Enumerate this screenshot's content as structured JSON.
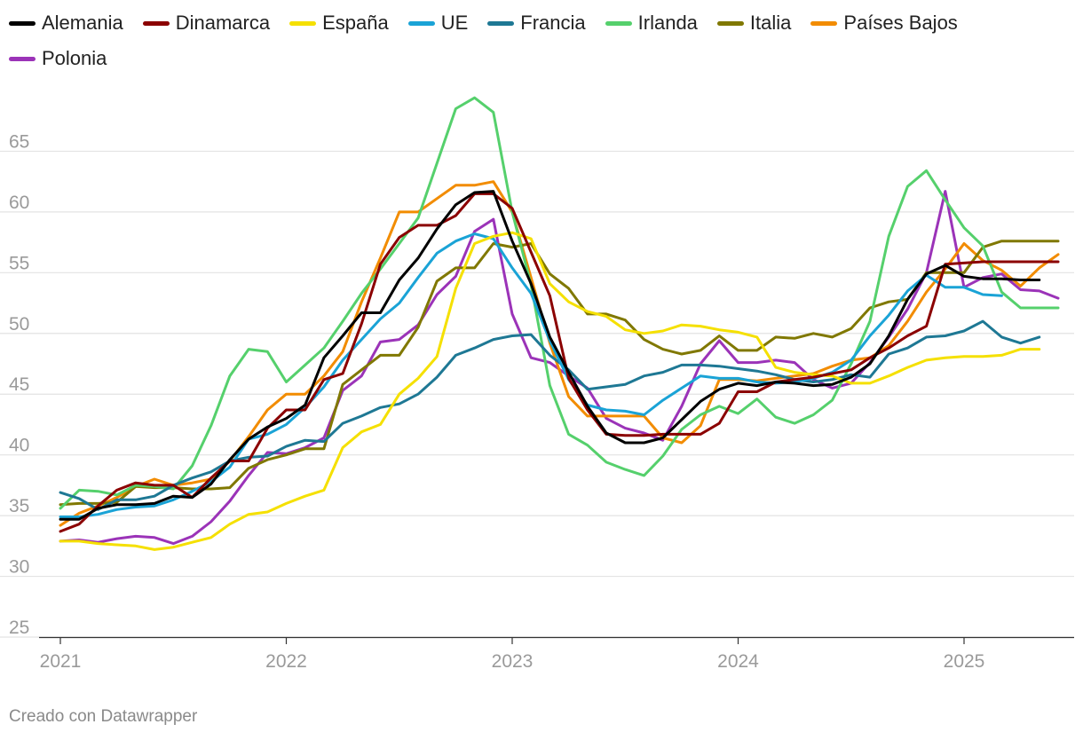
{
  "credit": "Creado con Datawrapper",
  "chart_data": {
    "type": "line",
    "title": "",
    "xlabel": "",
    "ylabel": "",
    "ylim": [
      25,
      70
    ],
    "xlim": [
      2021.0,
      2025.5
    ],
    "y_ticks": [
      25,
      30,
      35,
      40,
      45,
      50,
      55,
      60,
      65
    ],
    "x_ticks": [
      "2021",
      "2022",
      "2023",
      "2024",
      "2025"
    ],
    "x_tick_values": [
      2021,
      2022,
      2023,
      2024,
      2025
    ],
    "grid": "horizontal",
    "legend_position": "top",
    "series": [
      {
        "name": "Alemania",
        "color": "#000000",
        "values": [
          34.7,
          34.7,
          35.6,
          35.9,
          35.9,
          36.0,
          36.6,
          36.5,
          37.6,
          39.6,
          41.3,
          42.3,
          43.0,
          44.1,
          48.0,
          49.8,
          51.7,
          51.7,
          54.4,
          56.2,
          58.6,
          60.6,
          61.6,
          61.7,
          57.6,
          54.1,
          49.7,
          46.8,
          44.0,
          41.8,
          41.0,
          41.0,
          41.4,
          42.9,
          44.4,
          45.4,
          45.9,
          45.7,
          46.0,
          45.9,
          45.7,
          45.8,
          46.4,
          47.5,
          49.8,
          52.8,
          54.9,
          55.6,
          54.7,
          54.5,
          54.5,
          54.4,
          54.4
        ]
      },
      {
        "name": "Dinamarca",
        "color": "#8b0000",
        "values": [
          33.7,
          34.3,
          35.8,
          37.1,
          37.7,
          37.5,
          37.5,
          36.5,
          38.1,
          39.5,
          39.5,
          42.2,
          43.7,
          43.7,
          46.2,
          46.7,
          50.8,
          55.7,
          57.9,
          58.9,
          58.9,
          59.7,
          61.5,
          61.5,
          60.3,
          56.7,
          53.1,
          46.3,
          43.7,
          41.7,
          41.6,
          41.6,
          41.7,
          41.7,
          41.7,
          42.6,
          45.2,
          45.2,
          46.0,
          46.2,
          46.4,
          46.7,
          47.0,
          48.0,
          48.8,
          49.8,
          50.6,
          55.7,
          55.8,
          55.9,
          55.9,
          55.9,
          55.9,
          55.9
        ]
      },
      {
        "name": "España",
        "color": "#f5e000",
        "values": [
          32.9,
          32.9,
          32.7,
          32.6,
          32.5,
          32.2,
          32.4,
          32.8,
          33.2,
          34.3,
          35.1,
          35.3,
          36.0,
          36.6,
          37.1,
          40.6,
          41.9,
          42.5,
          45.0,
          46.3,
          48.1,
          53.7,
          57.4,
          58.0,
          58.3,
          57.8,
          54.1,
          52.6,
          51.8,
          51.4,
          50.3,
          50.0,
          50.2,
          50.7,
          50.6,
          50.3,
          50.1,
          49.7,
          47.2,
          46.8,
          46.6,
          46.5,
          45.9,
          45.9,
          46.5,
          47.2,
          47.8,
          48.0,
          48.1,
          48.1,
          48.2,
          48.7,
          48.7
        ]
      },
      {
        "name": "UE",
        "color": "#1aa3d6",
        "values": [
          34.9,
          34.9,
          35.1,
          35.5,
          35.7,
          35.8,
          36.3,
          37.0,
          37.8,
          39.0,
          41.3,
          41.7,
          42.5,
          43.9,
          45.6,
          47.8,
          49.5,
          51.2,
          52.5,
          54.6,
          56.6,
          57.6,
          58.2,
          57.8,
          55.4,
          53.3,
          49.4,
          46.2,
          44.1,
          43.7,
          43.6,
          43.3,
          44.5,
          45.5,
          46.5,
          46.3,
          46.3,
          46.0,
          45.9,
          46.0,
          46.3,
          46.8,
          47.8,
          49.8,
          51.5,
          53.5,
          54.8,
          53.8,
          53.8,
          53.2,
          53.1
        ]
      },
      {
        "name": "Francia",
        "color": "#1e7894",
        "values": [
          36.9,
          36.4,
          35.5,
          36.3,
          36.3,
          36.6,
          37.5,
          38.1,
          38.6,
          39.5,
          39.8,
          39.9,
          40.7,
          41.2,
          41.1,
          42.6,
          43.2,
          43.9,
          44.2,
          45.0,
          46.4,
          48.2,
          48.8,
          49.5,
          49.8,
          49.9,
          48.2,
          47.0,
          45.4,
          45.6,
          45.8,
          46.5,
          46.8,
          47.4,
          47.4,
          47.3,
          47.1,
          46.9,
          46.6,
          46.2,
          46.0,
          46.2,
          46.6,
          46.4,
          48.3,
          48.8,
          49.7,
          49.8,
          50.2,
          51.0,
          49.7,
          49.2,
          49.7
        ]
      },
      {
        "name": "Irlanda",
        "color": "#55d06c",
        "values": [
          35.6,
          37.1,
          37.0,
          36.7,
          37.5,
          37.4,
          37.2,
          39.1,
          42.4,
          46.5,
          48.7,
          48.5,
          46.0,
          47.4,
          48.8,
          51.0,
          53.3,
          55.3,
          57.4,
          59.5,
          64.0,
          68.5,
          69.4,
          68.2,
          60.0,
          54.0,
          45.7,
          41.7,
          40.8,
          39.4,
          38.8,
          38.3,
          39.9,
          42.1,
          43.3,
          44.0,
          43.4,
          44.6,
          43.1,
          42.6,
          43.3,
          44.5,
          47.5,
          51.0,
          58.0,
          62.1,
          63.4,
          61.0,
          58.7,
          57.2,
          53.4,
          52.1,
          52.1,
          52.1
        ]
      },
      {
        "name": "Italia",
        "color": "#807800",
        "values": [
          35.9,
          36.0,
          36.0,
          36.1,
          37.4,
          37.3,
          37.3,
          37.2,
          37.2,
          37.3,
          38.9,
          39.6,
          40.0,
          40.5,
          40.5,
          45.8,
          47.0,
          48.2,
          48.2,
          50.5,
          54.3,
          55.4,
          55.4,
          57.4,
          57.1,
          57.4,
          54.9,
          53.7,
          51.6,
          51.6,
          51.1,
          49.5,
          48.7,
          48.3,
          48.6,
          49.8,
          48.6,
          48.6,
          49.7,
          49.6,
          50.0,
          49.7,
          50.4,
          52.1,
          52.6,
          52.8,
          55.0,
          55.0,
          55.0,
          57.1,
          57.6,
          57.6,
          57.6,
          57.6
        ]
      },
      {
        "name": "Países Bajos",
        "color": "#f28c00",
        "values": [
          34.2,
          35.2,
          35.8,
          36.5,
          37.4,
          38.0,
          37.5,
          37.7,
          38.0,
          39.5,
          41.5,
          43.7,
          45.0,
          45.0,
          46.5,
          48.5,
          52.6,
          56.2,
          60.0,
          60.0,
          61.1,
          62.2,
          62.2,
          62.5,
          60.0,
          54.6,
          49.2,
          44.8,
          43.2,
          43.2,
          43.2,
          43.2,
          41.4,
          41.0,
          42.4,
          46.2,
          46.2,
          46.1,
          46.3,
          46.5,
          46.7,
          47.3,
          47.8,
          48.0,
          49.0,
          51.0,
          53.4,
          55.3,
          57.4,
          56.0,
          55.2,
          53.9,
          55.4,
          56.5
        ]
      },
      {
        "name": "Polonia",
        "color": "#9b33b8",
        "values": [
          32.9,
          33.0,
          32.8,
          33.1,
          33.3,
          33.2,
          32.7,
          33.3,
          34.5,
          36.2,
          38.3,
          40.2,
          40.1,
          40.6,
          41.4,
          45.3,
          46.5,
          49.3,
          49.5,
          50.7,
          53.2,
          54.7,
          58.4,
          59.4,
          51.6,
          48.0,
          47.6,
          46.5,
          45.5,
          43.0,
          42.2,
          41.8,
          41.2,
          44.0,
          47.5,
          49.4,
          47.6,
          47.6,
          47.8,
          47.6,
          46.2,
          45.5,
          45.9,
          47.6,
          49.7,
          52.0,
          55.0,
          61.7,
          53.8,
          54.6,
          54.9,
          53.6,
          53.5,
          52.9
        ]
      }
    ]
  }
}
